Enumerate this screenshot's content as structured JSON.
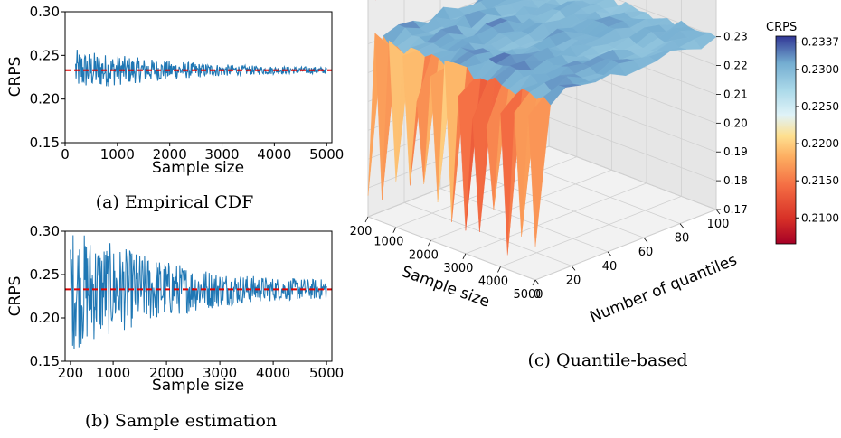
{
  "chart_data": [
    {
      "id": "a",
      "type": "line",
      "caption": "(a) Empirical CDF",
      "xlabel": "Sample size",
      "ylabel": "CRPS",
      "xlim": [
        0,
        5100
      ],
      "ylim": [
        0.15,
        0.3
      ],
      "xticks": [
        "0",
        "1000",
        "2000",
        "3000",
        "4000",
        "5000"
      ],
      "yticks": [
        "0.15",
        "0.20",
        "0.25",
        "0.30"
      ],
      "reference_line": 0.233,
      "series_color": "#1f77b4",
      "reference_color": "#e00000",
      "x_range": [
        200,
        5000
      ],
      "noise_start": 0.02,
      "noise_end": 0.004
    },
    {
      "id": "b",
      "type": "line",
      "caption": "(b) Sample estimation",
      "xlabel": "Sample size",
      "ylabel": "CRPS",
      "xlim": [
        100,
        5100
      ],
      "ylim": [
        0.15,
        0.3
      ],
      "xticks": [
        "200",
        "1000",
        "2000",
        "3000",
        "4000",
        "5000"
      ],
      "yticks": [
        "0.15",
        "0.20",
        "0.25",
        "0.30"
      ],
      "reference_line": 0.233,
      "series_color": "#1f77b4",
      "reference_color": "#e00000",
      "x_range": [
        200,
        5000
      ],
      "noise_start": 0.06,
      "noise_end": 0.012
    },
    {
      "id": "c",
      "type": "surface",
      "caption": "(c) Quantile-based",
      "xlabel": "Sample size",
      "ylabel": "Number of quantiles",
      "colorbar_label": "CRPS",
      "xticks": [
        "200",
        "1000",
        "2000",
        "3000",
        "4000",
        "5000"
      ],
      "yticks": [
        "0",
        "20",
        "40",
        "60",
        "80",
        "100"
      ],
      "zticks": [
        "0.17",
        "0.18",
        "0.19",
        "0.20",
        "0.21",
        "0.22",
        "0.23"
      ],
      "zlim": [
        0.17,
        0.233
      ],
      "colorbar_ticks": [
        "0.2337",
        "0.2300",
        "0.2250",
        "0.2200",
        "0.2150",
        "0.2100"
      ],
      "colorbar_range": [
        0.2065,
        0.2345
      ],
      "reference_line": 0.235
    }
  ]
}
